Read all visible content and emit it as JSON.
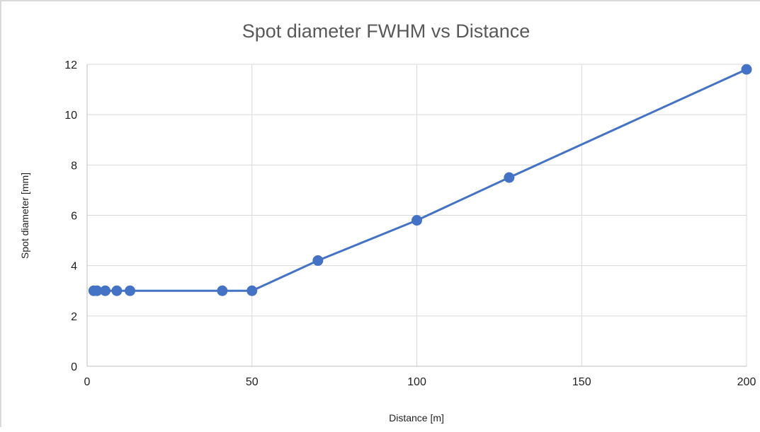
{
  "chart_data": {
    "type": "line",
    "title": "Spot diameter FWHM vs Distance",
    "xlabel": "Distance [m]",
    "ylabel": "Spot diameter [mm]",
    "xlim": [
      0,
      200
    ],
    "ylim": [
      0,
      12
    ],
    "x_ticks": [
      0,
      50,
      100,
      150,
      200
    ],
    "y_ticks": [
      0,
      2,
      4,
      6,
      8,
      10,
      12
    ],
    "grid": true,
    "legend": "none",
    "series": [
      {
        "color": "#4472c4",
        "x": [
          2,
          3,
          5.5,
          9,
          13,
          41,
          50,
          70,
          100,
          128,
          200
        ],
        "y": [
          3,
          3,
          3,
          3,
          3,
          3,
          3,
          4.2,
          5.8,
          7.5,
          11.8
        ]
      }
    ]
  }
}
